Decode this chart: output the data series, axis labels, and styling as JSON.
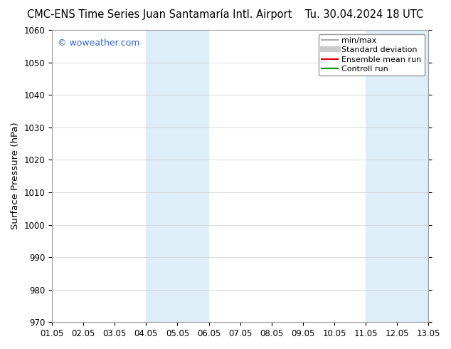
{
  "title_left": "CMC-ENS Time Series Juan Santamaría Intl. Airport",
  "title_right": "Tu. 30.04.2024 18 UTC",
  "ylabel": "Surface Pressure (hPa)",
  "ylim": [
    970,
    1060
  ],
  "yticks": [
    970,
    980,
    990,
    1000,
    1010,
    1020,
    1030,
    1040,
    1050,
    1060
  ],
  "xtick_labels": [
    "01.05",
    "02.05",
    "03.05",
    "04.05",
    "05.05",
    "06.05",
    "07.05",
    "08.05",
    "09.05",
    "10.05",
    "11.05",
    "12.05",
    "13.05"
  ],
  "xtick_positions": [
    0,
    1,
    2,
    3,
    4,
    5,
    6,
    7,
    8,
    9,
    10,
    11,
    12
  ],
  "xlim": [
    0,
    12
  ],
  "shaded_regions": [
    {
      "xmin": 3,
      "xmax": 5,
      "color": "#ddeef8"
    },
    {
      "xmin": 10,
      "xmax": 12,
      "color": "#ddeef8"
    }
  ],
  "watermark": "© woweather.com",
  "watermark_color": "#3366cc",
  "legend_entries": [
    {
      "label": "min/max",
      "color": "#aaaaaa",
      "linestyle": "-",
      "linewidth": 1.5
    },
    {
      "label": "Standard deviation",
      "color": "#cccccc",
      "linestyle": "-",
      "linewidth": 6
    },
    {
      "label": "Ensemble mean run",
      "color": "#dd0000",
      "linestyle": "-",
      "linewidth": 1.5
    },
    {
      "label": "Controll run",
      "color": "#009900",
      "linestyle": "-",
      "linewidth": 1.5
    }
  ],
  "background_color": "#ffffff",
  "grid_color": "#cccccc",
  "tick_label_fontsize": 8.5,
  "title_fontsize": 10.5,
  "ylabel_fontsize": 9.5,
  "watermark_fontsize": 9,
  "legend_fontsize": 8
}
